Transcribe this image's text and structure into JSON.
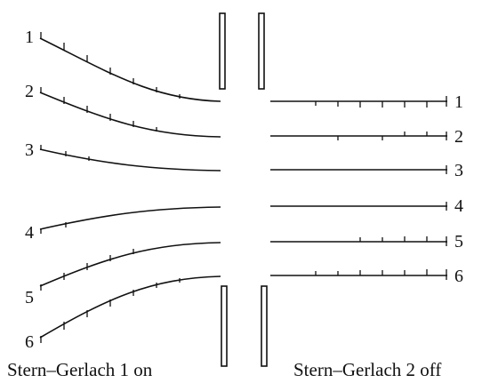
{
  "left_path_numbers": [
    "1",
    "2",
    "3",
    "4",
    "5",
    "6"
  ],
  "right_path_numbers": [
    "1",
    "2",
    "3",
    "4",
    "5",
    "6"
  ],
  "captions": {
    "left": "Stern–Gerlach 1 on",
    "right": "Stern–Gerlach 2 off"
  }
}
